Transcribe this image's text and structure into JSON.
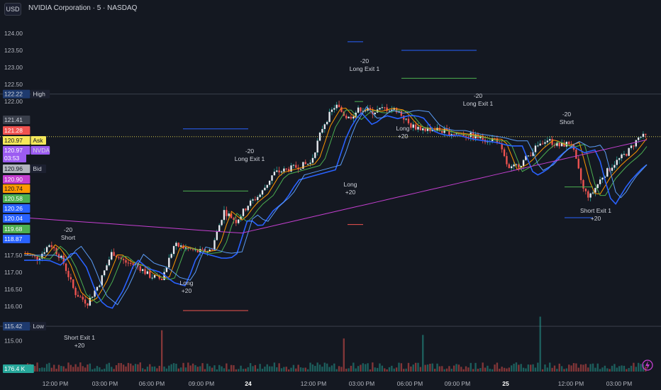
{
  "header": {
    "currency": "USD",
    "title": "NVIDIA Corporation · 5 · NASDAQ"
  },
  "colors": {
    "background": "#141821",
    "grid_text": "#b2b5be",
    "up": "#26a69a",
    "down": "#ef5350",
    "vwap_purple": "#c43fd0",
    "blue_band": "#2962ff",
    "green_level": "#4caf50",
    "red_level": "#ef5350",
    "dotted_line": "#d4c84a"
  },
  "price_axis": {
    "ticks": [
      "124.00",
      "123.50",
      "123.00",
      "122.50",
      "122.00",
      "117.50",
      "117.00",
      "116.50",
      "116.00",
      "115.00"
    ],
    "ymin": 114.55,
    "ymax": 124.35
  },
  "price_labels": [
    {
      "value": "122.22",
      "tag": "High",
      "bg": "#1e3a6e",
      "fg": "#d1d4dc"
    },
    {
      "value": "121.41",
      "tag": "",
      "bg": "#3a3f4b",
      "fg": "#d1d4dc"
    },
    {
      "value": "121.28",
      "tag": "",
      "bg": "#ef5350",
      "fg": "#ffffff"
    },
    {
      "value": "120.97",
      "tag": "Ask",
      "bg": "#f5e85a",
      "fg": "#131722"
    },
    {
      "value": "120.97",
      "tag": "NVDA",
      "bg": "#9c5cf2",
      "fg": "#ffffff"
    },
    {
      "value": "03:53",
      "tag": "",
      "bg": "#9c5cf2",
      "fg": "#ffffff"
    },
    {
      "value": "120.96",
      "tag": "Bid",
      "bg": "#b2b5be",
      "fg": "#131722"
    },
    {
      "value": "120.90",
      "tag": "",
      "bg": "#c43fd0",
      "fg": "#ffffff"
    },
    {
      "value": "120.74",
      "tag": "",
      "bg": "#ff9800",
      "fg": "#131722"
    },
    {
      "value": "120.58",
      "tag": "",
      "bg": "#4caf50",
      "fg": "#ffffff"
    },
    {
      "value": "120.26",
      "tag": "",
      "bg": "#2962ff",
      "fg": "#ffffff"
    },
    {
      "value": "120.04",
      "tag": "",
      "bg": "#2962ff",
      "fg": "#ffffff"
    },
    {
      "value": "119.68",
      "tag": "",
      "bg": "#4caf50",
      "fg": "#ffffff"
    },
    {
      "value": "118.87",
      "tag": "",
      "bg": "#2962ff",
      "fg": "#ffffff"
    },
    {
      "value": "115.42",
      "tag": "Low",
      "bg": "#1e3a6e",
      "fg": "#d1d4dc"
    },
    {
      "value": "176.4 K",
      "tag": "",
      "bg": "#26a69a",
      "fg": "#ffffff"
    }
  ],
  "time_axis": [
    "12:00 PM",
    "03:00 PM",
    "06:00 PM",
    "09:00 PM",
    "24",
    "12:00 PM",
    "03:00 PM",
    "06:00 PM",
    "09:00 PM",
    "25",
    "12:00 PM",
    "03:00 PM"
  ],
  "trades": [
    {
      "qty": "-20",
      "label": "Short",
      "kind": "short"
    },
    {
      "label": "Short Exit 1",
      "qty": "+20",
      "kind": "exit-short"
    },
    {
      "label": "Long",
      "qty": "+20",
      "kind": "long"
    },
    {
      "qty": "-20",
      "label": "Long Exit 1",
      "kind": "exit-long"
    },
    {
      "label": "Long",
      "qty": "+20",
      "kind": "long"
    },
    {
      "qty": "-20",
      "label": "Long Exit 1",
      "kind": "exit-long"
    },
    {
      "label": "Long",
      "qty": "+20",
      "kind": "long"
    },
    {
      "qty": "-20",
      "label": "Long Exit 1",
      "kind": "exit-long"
    },
    {
      "qty": "-20",
      "label": "Short",
      "kind": "short"
    },
    {
      "label": "Short Exit 1",
      "qty": "+20",
      "kind": "exit-short"
    }
  ],
  "chart_data": {
    "type": "candlestick",
    "title": "NVIDIA Corporation · 5 · NASDAQ",
    "y_range": [
      114.55,
      124.35
    ],
    "high_price": 122.22,
    "low_price": 115.42,
    "last_price": 120.97,
    "volume_last": "176.4 K",
    "price_path": [
      {
        "t": 0.0,
        "p": 117.55
      },
      {
        "t": 0.02,
        "p": 117.4
      },
      {
        "t": 0.04,
        "p": 117.85
      },
      {
        "t": 0.06,
        "p": 117.35
      },
      {
        "t": 0.08,
        "p": 116.4
      },
      {
        "t": 0.1,
        "p": 116.1
      },
      {
        "t": 0.12,
        "p": 116.7
      },
      {
        "t": 0.14,
        "p": 117.6
      },
      {
        "t": 0.16,
        "p": 117.3
      },
      {
        "t": 0.18,
        "p": 117.2
      },
      {
        "t": 0.2,
        "p": 116.9
      },
      {
        "t": 0.22,
        "p": 116.8
      },
      {
        "t": 0.24,
        "p": 117.8
      },
      {
        "t": 0.26,
        "p": 117.7
      },
      {
        "t": 0.28,
        "p": 117.6
      },
      {
        "t": 0.3,
        "p": 117.65
      },
      {
        "t": 0.32,
        "p": 118.8
      },
      {
        "t": 0.34,
        "p": 118.5
      },
      {
        "t": 0.36,
        "p": 119.0
      },
      {
        "t": 0.38,
        "p": 119.3
      },
      {
        "t": 0.4,
        "p": 119.9
      },
      {
        "t": 0.42,
        "p": 120.0
      },
      {
        "t": 0.44,
        "p": 120.1
      },
      {
        "t": 0.46,
        "p": 120.2
      },
      {
        "t": 0.48,
        "p": 121.3
      },
      {
        "t": 0.5,
        "p": 121.9
      },
      {
        "t": 0.52,
        "p": 121.5
      },
      {
        "t": 0.54,
        "p": 121.8
      },
      {
        "t": 0.56,
        "p": 121.7
      },
      {
        "t": 0.58,
        "p": 121.8
      },
      {
        "t": 0.6,
        "p": 121.75
      },
      {
        "t": 0.62,
        "p": 121.3
      },
      {
        "t": 0.64,
        "p": 121.2
      },
      {
        "t": 0.66,
        "p": 121.2
      },
      {
        "t": 0.68,
        "p": 121.1
      },
      {
        "t": 0.7,
        "p": 121.05
      },
      {
        "t": 0.72,
        "p": 121.0
      },
      {
        "t": 0.74,
        "p": 120.9
      },
      {
        "t": 0.76,
        "p": 120.9
      },
      {
        "t": 0.78,
        "p": 120.0
      },
      {
        "t": 0.8,
        "p": 120.2
      },
      {
        "t": 0.82,
        "p": 120.6
      },
      {
        "t": 0.84,
        "p": 120.9
      },
      {
        "t": 0.86,
        "p": 120.7
      },
      {
        "t": 0.88,
        "p": 120.8
      },
      {
        "t": 0.9,
        "p": 119.4
      },
      {
        "t": 0.91,
        "p": 119.2
      },
      {
        "t": 0.93,
        "p": 119.8
      },
      {
        "t": 0.95,
        "p": 120.2
      },
      {
        "t": 0.97,
        "p": 120.5
      },
      {
        "t": 0.99,
        "p": 120.97
      }
    ]
  }
}
